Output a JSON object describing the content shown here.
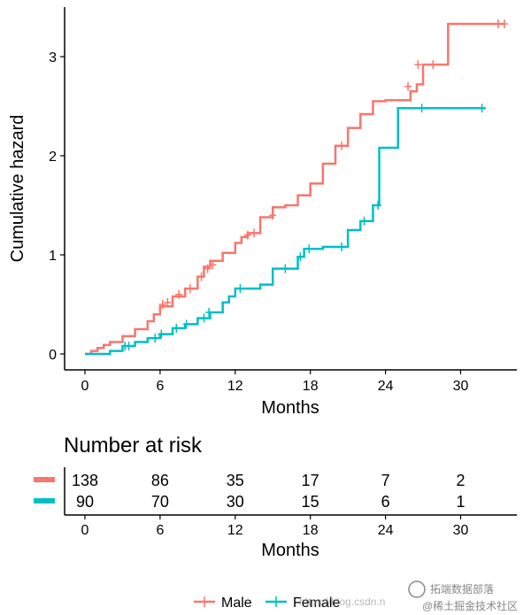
{
  "chart_data": [
    {
      "type": "line",
      "chart_kind": "cumulative hazard step plot",
      "ylabel": "Cumulative hazard",
      "xlabel": "Months",
      "x_ticks": [
        0,
        6,
        12,
        18,
        24,
        30
      ],
      "y_ticks": [
        0,
        1,
        2,
        3
      ],
      "xlim": [
        -1.5,
        34.5
      ],
      "ylim": [
        -0.15,
        3.5
      ],
      "grid": false,
      "legend_position": "bottom",
      "series": [
        {
          "name": "Male",
          "color": "#F8766D",
          "x": [
            0,
            0.5,
            1,
            1.5,
            2,
            3,
            4,
            5,
            5.5,
            6,
            7,
            8,
            9,
            9.5,
            10,
            11,
            12,
            12.5,
            13,
            14,
            15,
            16,
            17,
            18,
            19,
            20,
            21,
            22,
            23,
            24,
            26,
            26.5,
            27,
            29,
            33.5
          ],
          "y": [
            0,
            0.03,
            0.06,
            0.09,
            0.12,
            0.18,
            0.25,
            0.33,
            0.4,
            0.48,
            0.58,
            0.66,
            0.78,
            0.88,
            0.94,
            1.02,
            1.12,
            1.18,
            1.22,
            1.38,
            1.48,
            1.5,
            1.6,
            1.72,
            1.92,
            2.1,
            2.28,
            2.42,
            2.55,
            2.56,
            2.65,
            2.72,
            2.92,
            3.33,
            3.33
          ],
          "censor_x": [
            6.2,
            6.6,
            7.5,
            8.4,
            9.3,
            9.8,
            10.2,
            13,
            13.5,
            15,
            20.5,
            25.8,
            26.6,
            27.8,
            33,
            33.5
          ],
          "censor_y": [
            0.5,
            0.52,
            0.6,
            0.66,
            0.78,
            0.86,
            0.9,
            1.2,
            1.22,
            1.4,
            2.1,
            2.7,
            2.92,
            2.92,
            3.33,
            3.33
          ]
        },
        {
          "name": "Female",
          "color": "#00BFC4",
          "x": [
            0,
            2,
            3,
            4,
            5,
            6,
            7,
            8,
            9,
            10,
            11,
            11.5,
            12,
            14,
            15,
            17,
            17.5,
            19,
            21,
            22,
            23,
            23.5,
            25,
            32
          ],
          "y": [
            0,
            0.03,
            0.08,
            0.12,
            0.16,
            0.2,
            0.26,
            0.3,
            0.36,
            0.42,
            0.52,
            0.58,
            0.66,
            0.7,
            0.86,
            0.98,
            1.06,
            1.08,
            1.25,
            1.34,
            1.5,
            2.08,
            2.48,
            2.48
          ],
          "censor_x": [
            3.2,
            3.5,
            5.6,
            6.1,
            7.3,
            8.1,
            9.5,
            9.9,
            12.4,
            16,
            17.2,
            17.9,
            20.5,
            22.3,
            23.4,
            26.9,
            31.7
          ],
          "censor_y": [
            0.08,
            0.08,
            0.16,
            0.2,
            0.26,
            0.3,
            0.36,
            0.42,
            0.66,
            0.86,
            0.98,
            1.06,
            1.08,
            1.34,
            1.5,
            2.48,
            2.48
          ]
        }
      ]
    },
    {
      "type": "table",
      "title": "Number at risk",
      "xlabel": "Months",
      "x_ticks": [
        0,
        6,
        12,
        18,
        24,
        30
      ],
      "rows": [
        {
          "name": "Male",
          "color": "#F8766D",
          "values": [
            138,
            86,
            35,
            17,
            7,
            2
          ]
        },
        {
          "name": "Female",
          "color": "#00BFC4",
          "values": [
            90,
            70,
            30,
            15,
            6,
            1
          ]
        }
      ]
    }
  ],
  "legend": {
    "items": [
      {
        "label": "Male",
        "color": "#F8766D"
      },
      {
        "label": "Female",
        "color": "#00BFC4"
      }
    ]
  },
  "watermark": {
    "brand": "拓端数据部落",
    "url_text": "https://blog.csdn.n",
    "community": "@稀土掘金技术社区"
  }
}
